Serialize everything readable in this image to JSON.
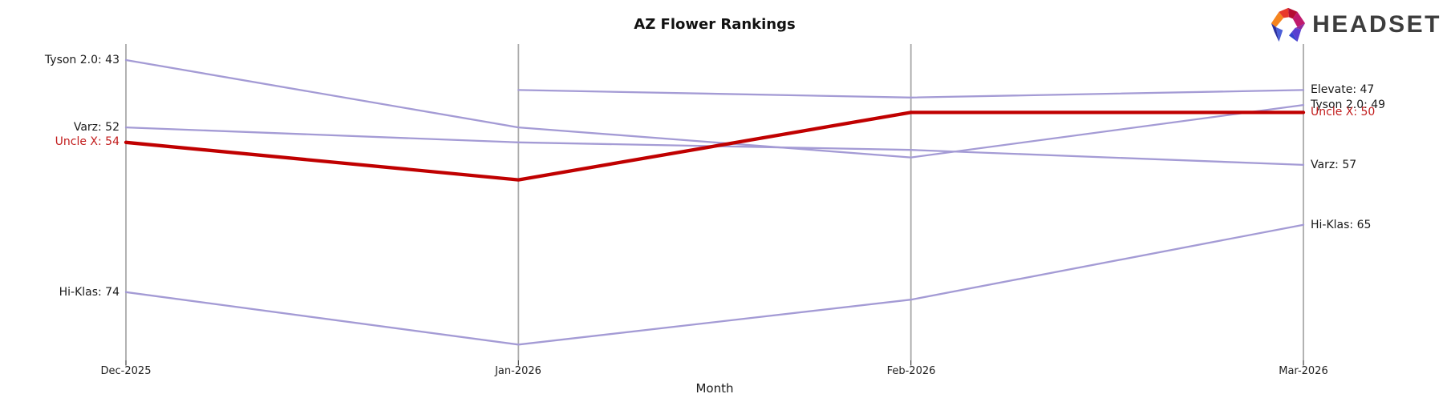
{
  "header": {
    "title": "AZ Flower Rankings",
    "logo_text": "HEADSET"
  },
  "colors": {
    "line_default": "#a49bd5",
    "line_highlight": "#c00000",
    "label_highlight_text": "#c21c1c",
    "axis": "#a9a9a9",
    "tick": "#404040",
    "text": "#1a1a1a",
    "background": "#ffffff"
  },
  "chart_data": {
    "type": "line",
    "subtype": "bump-ranking-chart",
    "title": "AZ Flower Rankings",
    "xlabel": "Month",
    "ylabel": "",
    "categories": [
      "Dec-2025",
      "Jan-2026",
      "Feb-2026",
      "Mar-2026"
    ],
    "y_axis": {
      "range": [
        43,
        81
      ],
      "inverted": true,
      "note": "lower rank value plotted higher; no visible y ticks"
    },
    "grid": "vertical-axis-lines-only",
    "legend_position": "none",
    "series": [
      {
        "name": "Tyson 2.0",
        "values": [
          43,
          52,
          56,
          49
        ],
        "color": "#a49bd5",
        "highlight": false,
        "left_label": "Tyson 2.0: 43",
        "right_label": "Tyson 2.0: 49"
      },
      {
        "name": "Varz",
        "values": [
          52,
          54,
          55,
          57
        ],
        "color": "#a49bd5",
        "highlight": false,
        "left_label": "Varz: 52",
        "right_label": "Varz: 57"
      },
      {
        "name": "Uncle X",
        "values": [
          54,
          59,
          50,
          50
        ],
        "color": "#c00000",
        "highlight": true,
        "left_label": "Uncle X: 54",
        "right_label": "Uncle X: 50"
      },
      {
        "name": "Hi-Klas",
        "values": [
          74,
          81,
          75,
          65
        ],
        "color": "#a49bd5",
        "highlight": false,
        "left_label": "Hi-Klas: 74",
        "right_label": "Hi-Klas: 65"
      },
      {
        "name": "Elevate",
        "values": [
          null,
          47,
          48,
          47
        ],
        "color": "#a49bd5",
        "highlight": false,
        "left_label": null,
        "right_label": "Elevate: 47"
      }
    ]
  }
}
